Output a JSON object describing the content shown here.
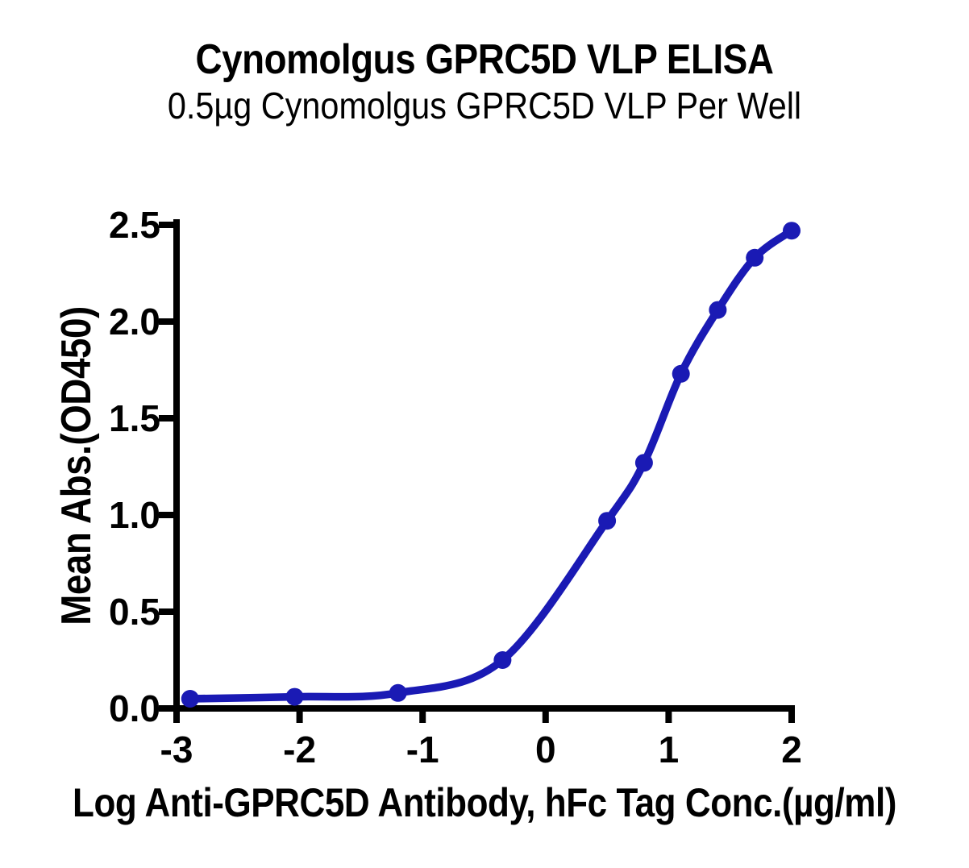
{
  "chart_data": {
    "type": "line",
    "title": "Cynomolgus GPRC5D VLP ELISA",
    "subtitle": "0.5µg Cynomolgus GPRC5D VLP Per Well",
    "xlabel": "Log Anti-GPRC5D Antibody, hFc Tag Conc.(µg/ml)",
    "ylabel": "Mean Abs.(OD450)",
    "x": [
      -2.89,
      -2.04,
      -1.2,
      -0.35,
      0.5,
      0.8,
      1.1,
      1.4,
      1.7,
      2.0
    ],
    "y": [
      0.05,
      0.06,
      0.08,
      0.25,
      0.97,
      1.27,
      1.73,
      2.06,
      2.33,
      2.47
    ],
    "xlim": [
      -3,
      2
    ],
    "ylim": [
      0,
      2.5
    ],
    "x_ticks": [
      -3,
      -2,
      -1,
      0,
      1,
      2
    ],
    "x_tick_labels": [
      "-3",
      "-2",
      "-1",
      "0",
      "1",
      "2"
    ],
    "y_ticks": [
      0,
      0.5,
      1,
      1.5,
      2,
      2.5
    ],
    "y_tick_labels": [
      "0.0",
      "0.5",
      "1.0",
      "1.5",
      "2.0",
      "2.5"
    ],
    "grid": false,
    "legend": false,
    "curve": "smooth sigmoid fit through points",
    "marker": "filled-circle",
    "colors": {
      "line": "#1a1ab4",
      "marker": "#1a1ab4",
      "axis": "#000000",
      "text": "#000000",
      "background": "#ffffff"
    }
  }
}
